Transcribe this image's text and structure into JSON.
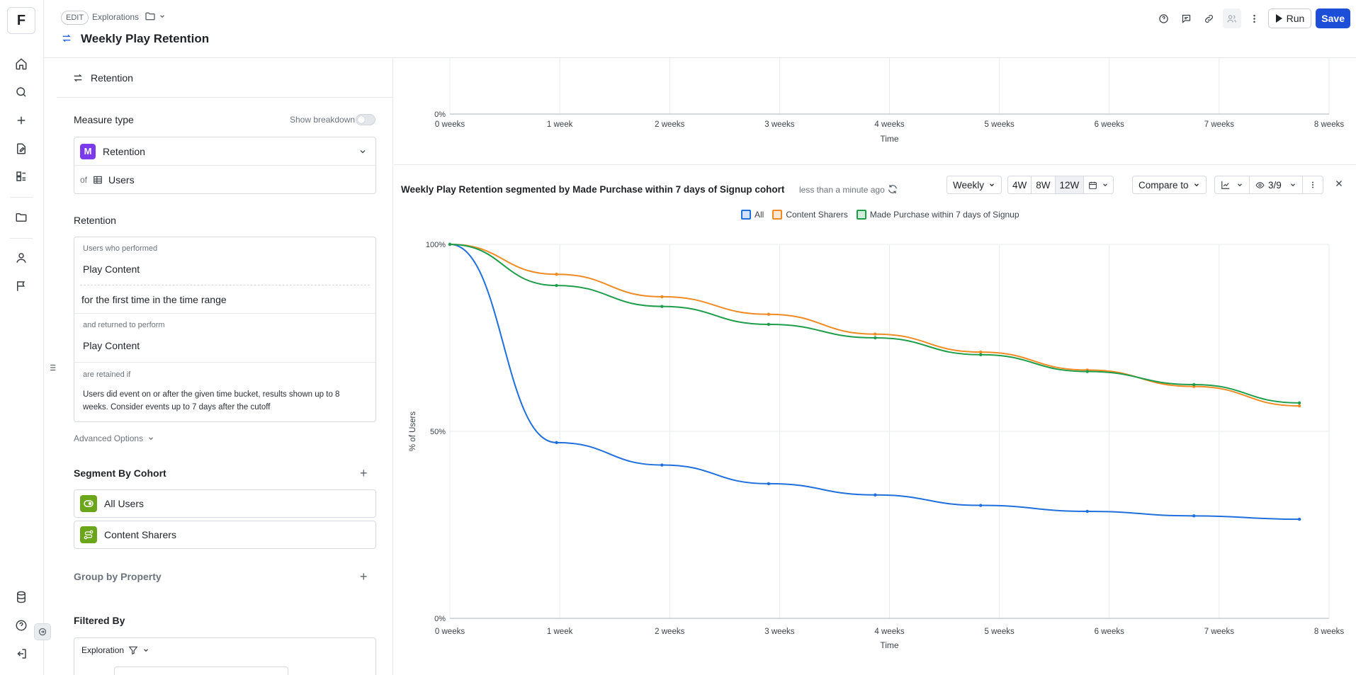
{
  "app": {
    "logo": "F"
  },
  "header": {
    "edit_label": "EDIT",
    "breadcrumb": "Explorations",
    "title": "Weekly Play Retention",
    "run_label": "Run",
    "save_label": "Save"
  },
  "panel": {
    "header_label": "Retention",
    "measure_type_title": "Measure type",
    "show_breakdown_label": "Show breakdown",
    "measure_badge": "M",
    "measure_value": "Retention",
    "of_label": "of",
    "of_value": "Users",
    "retention_title": "Retention",
    "performed_label": "Users who performed",
    "performed_value": "Play Content",
    "time_condition": "for the first time in the time range",
    "returned_label": "and returned to perform",
    "returned_value": "Play Content",
    "retained_label": "are retained if",
    "retained_desc": "Users did event on or after the given time bucket, results shown up to 8 weeks. Consider events up to 7 days after the cutoff",
    "advanced_label": "Advanced Options",
    "segment_title": "Segment By Cohort",
    "cohorts": [
      "All Users",
      "Content Sharers"
    ],
    "group_title": "Group by Property",
    "filtered_title": "Filtered By",
    "filter_scope": "Exploration"
  },
  "chart": {
    "title": "Weekly Play Retention segmented by Made Purchase within 7 days of Signup cohort",
    "updated": "less than a minute ago",
    "interval": "Weekly",
    "ranges": [
      "4W",
      "8W",
      "12W"
    ],
    "active_range": "12W",
    "compare_label": "Compare to",
    "visible_count": "3/9",
    "colors": {
      "All": "#1f6fdc",
      "Content Sharers": "#f08a24",
      "Made Purchase within 7 days of Signup": "#1e9e4a"
    }
  },
  "chart_data": [
    {
      "type": "line",
      "title": "",
      "xlabel": "Time",
      "ylabel": "",
      "categories": [
        "0 weeks",
        "1 week",
        "2 weeks",
        "3 weeks",
        "4 weeks",
        "5 weeks",
        "6 weeks",
        "7 weeks",
        "8 weeks"
      ],
      "y_ticks": [
        "0%"
      ],
      "note": "top portion of chart clipped; only 0% baseline visible",
      "series": []
    },
    {
      "type": "line",
      "title": "Weekly Play Retention segmented by Made Purchase within 7 days of Signup cohort",
      "xlabel": "Time",
      "ylabel": "% of Users",
      "categories": [
        "0 weeks",
        "1 week",
        "2 weeks",
        "3 weeks",
        "4 weeks",
        "5 weeks",
        "6 weeks",
        "7 weeks",
        "8 weeks"
      ],
      "y_ticks": [
        "0%",
        "50%",
        "100%"
      ],
      "ylim": [
        0,
        100
      ],
      "legend": "top-center",
      "grid": true,
      "x": [
        0,
        0.97,
        1.93,
        2.9,
        3.87,
        4.83,
        5.8,
        6.77,
        7.73
      ],
      "series": [
        {
          "name": "All",
          "color": "#1f6fdc",
          "values": [
            100,
            47,
            41,
            36,
            33,
            30.2,
            28.6,
            27.4,
            26.5
          ]
        },
        {
          "name": "Content Sharers",
          "color": "#f08a24",
          "values": [
            100,
            92,
            86,
            81.3,
            76,
            71.2,
            66.4,
            62,
            56.8
          ]
        },
        {
          "name": "Made Purchase within 7 days of Signup",
          "color": "#1e9e4a",
          "values": [
            100,
            89,
            83.4,
            78.6,
            75,
            70.5,
            66,
            62.5,
            57.6
          ]
        }
      ]
    }
  ]
}
